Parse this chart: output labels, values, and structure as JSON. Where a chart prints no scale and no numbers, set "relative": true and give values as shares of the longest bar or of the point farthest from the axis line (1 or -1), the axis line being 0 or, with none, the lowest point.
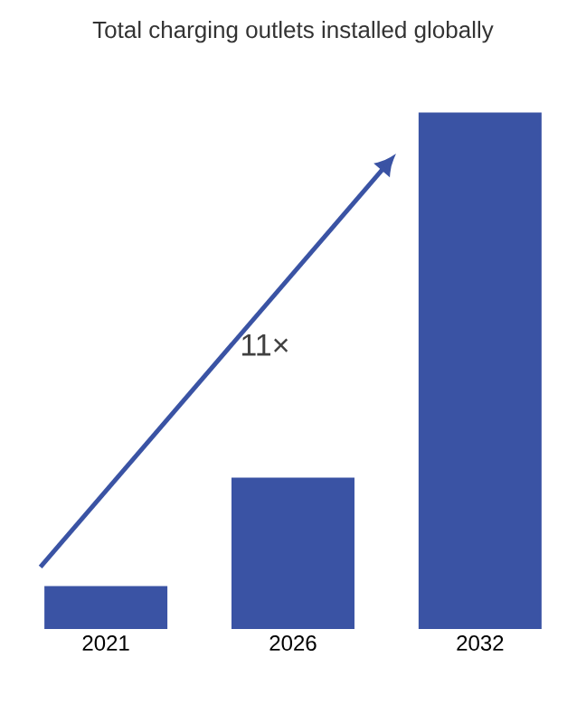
{
  "chart_data": {
    "type": "bar",
    "title": "Total charging outlets installed globally",
    "categories": [
      "2021",
      "2026",
      "2032"
    ],
    "values": [
      0.083,
      0.293,
      1
    ],
    "color": "#3a53a4",
    "relative": true,
    "annotations": [
      "11×"
    ]
  }
}
